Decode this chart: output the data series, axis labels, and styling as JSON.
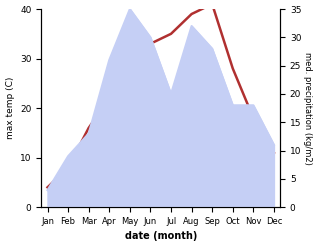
{
  "months": [
    "Jan",
    "Feb",
    "Mar",
    "Apr",
    "May",
    "Jun",
    "Jul",
    "Aug",
    "Sep",
    "Oct",
    "Nov",
    "Dec"
  ],
  "temperature": [
    4,
    8,
    16,
    22,
    30,
    33,
    35,
    39,
    41,
    28,
    18,
    11
  ],
  "precipitation": [
    3,
    9,
    13,
    26,
    35,
    30,
    20,
    32,
    28,
    18,
    18,
    11
  ],
  "temp_color": "#b03030",
  "precip_fill_color": "#c5cff5",
  "temp_ylim": [
    0,
    40
  ],
  "precip_ylim": [
    0,
    35
  ],
  "xlabel": "date (month)",
  "ylabel_left": "max temp (C)",
  "ylabel_right": "med. precipitation (kg/m2)",
  "temp_linewidth": 1.8,
  "background_color": "#ffffff"
}
